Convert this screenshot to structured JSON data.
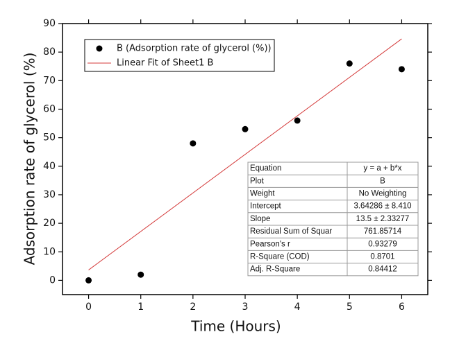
{
  "chart_data": {
    "type": "scatter",
    "x_label": "Time (Hours)",
    "y_label": "Adsorption rate of glycerol (%)",
    "x": [
      0,
      1,
      2,
      3,
      4,
      5,
      6
    ],
    "series": [
      {
        "name": "B (Adsorption rate of glycerol (%))",
        "type": "scatter",
        "color": "#000000",
        "values": [
          0,
          2,
          48,
          53,
          56,
          76,
          74
        ]
      },
      {
        "name": "Linear Fit of Sheet1 B",
        "type": "line",
        "color": "#d43a3a",
        "x": [
          0,
          6
        ],
        "values": [
          3.64,
          84.64
        ]
      }
    ],
    "xlim": [
      -0.5,
      6.5
    ],
    "ylim": [
      -5,
      90
    ],
    "xticks": [
      0,
      1,
      2,
      3,
      4,
      5,
      6
    ],
    "yticks": [
      0,
      10,
      20,
      30,
      40,
      50,
      60,
      70,
      80,
      90
    ],
    "legend": "upper left",
    "table": [
      [
        "Equation",
        "y = a + b*x"
      ],
      [
        "Plot",
        "B"
      ],
      [
        "Weight",
        "No Weighting"
      ],
      [
        "Intercept",
        "3.64286 ± 8.410"
      ],
      [
        "Slope",
        "13.5 ± 2.33277"
      ],
      [
        "Residual Sum of Squar",
        "761.85714"
      ],
      [
        "Pearson's r",
        "0.93279"
      ],
      [
        "R-Square (COD)",
        "0.8701"
      ],
      [
        "Adj. R-Square",
        "0.84412"
      ]
    ]
  }
}
